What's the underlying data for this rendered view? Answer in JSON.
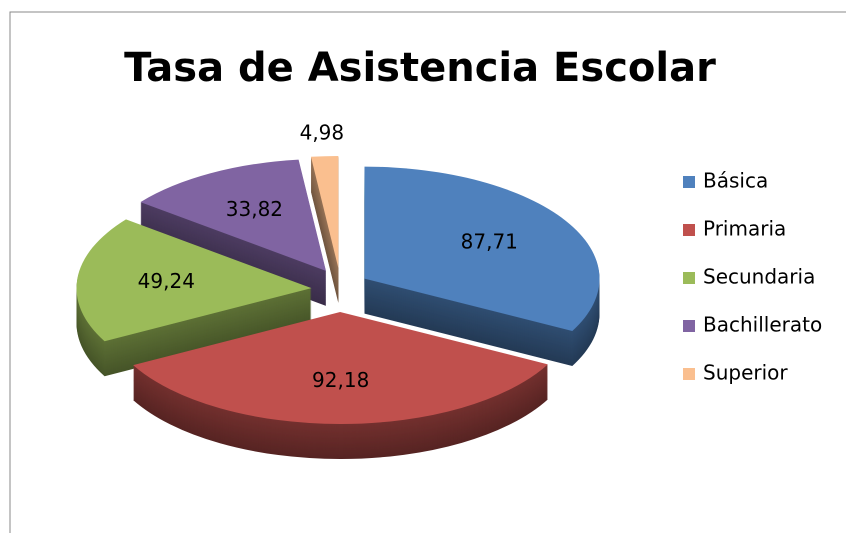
{
  "chart_data": {
    "type": "pie",
    "title": "Tasa de Asistencia Escolar",
    "categories": [
      "Básica",
      "Primaria",
      "Secundaria",
      "Bachillerato",
      "Superior"
    ],
    "values": [
      87.71,
      92.18,
      49.24,
      33.82,
      4.98
    ],
    "value_labels": [
      "87,71",
      "92,18",
      "49,24",
      "33,82",
      "4,98"
    ],
    "colors": [
      "#4f81bd",
      "#c0504d",
      "#9bbb59",
      "#8064a2",
      "#fabf8f"
    ],
    "legend": "right"
  }
}
